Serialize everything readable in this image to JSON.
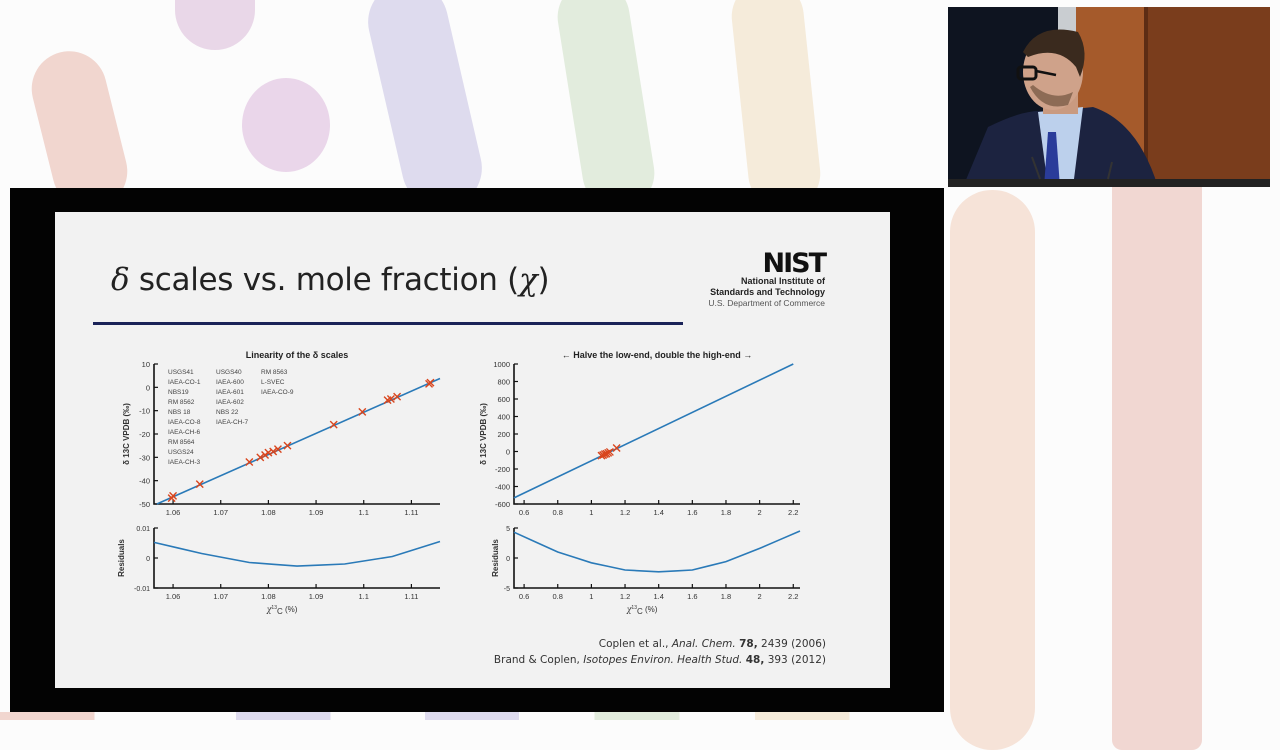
{
  "slide": {
    "title_prefix_symbol": "δ",
    "title_text": " scales vs. mole fraction (",
    "title_symbol": "χ",
    "title_suffix": ")",
    "logo": {
      "mark": "NIST",
      "line1": "National Institute of",
      "line2": "Standards and Technology",
      "line3": "U.S. Department of Commerce"
    },
    "citations": [
      {
        "authors": "Coplen et al., ",
        "journal": "Anal. Chem.",
        "volume": "78,",
        "rest": " 2439 (2006)"
      },
      {
        "authors": "Brand & Coplen, ",
        "journal": "Isotopes Environ. Health Stud.",
        "volume": "48,",
        "rest": " 393 (2012)"
      }
    ]
  },
  "video": {
    "description": "speaker-camera-feed"
  },
  "colors": {
    "line": "#2a7ab8",
    "marker": "#d9461e",
    "title_rule": "#1b2358",
    "slide_bg": "#f2f2f2",
    "frame": "#030303"
  },
  "chart_data": [
    {
      "type": "line",
      "title": "Linearity of the δ scales",
      "xlabel": "χ13C (%)",
      "ylabel": "δ 13C VPDB (‰)",
      "xlim": [
        1.056,
        1.116
      ],
      "ylim": [
        -50,
        10
      ],
      "xticks": [
        "1.06",
        "1.07",
        "1.08",
        "1.09",
        "1.1",
        "1.11"
      ],
      "yticks": [
        "10",
        "0",
        "-10",
        "-20",
        "-30",
        "-40",
        "-50"
      ],
      "series": [
        {
          "name": "fit",
          "x": [
            1.0566,
            1.116
          ],
          "y": [
            -50,
            3.8
          ]
        },
        {
          "name": "reference materials",
          "marker": "x",
          "x": [
            1.0597,
            1.06,
            1.0656,
            1.076,
            1.0783,
            1.0793,
            1.08,
            1.081,
            1.082,
            1.084,
            1.0937,
            1.0997,
            1.105,
            1.1057,
            1.107,
            1.1137,
            1.114
          ],
          "y": [
            -47.5,
            -46.5,
            -41.5,
            -32.0,
            -30.0,
            -29.0,
            -28.0,
            -27.5,
            -26.5,
            -25.0,
            -16.0,
            -10.5,
            -5.5,
            -5.0,
            -4.0,
            1.5,
            2.0
          ]
        }
      ],
      "legend": [
        "USGS41",
        "IAEA-CO-1",
        "NBS19",
        "RM 8562",
        "NBS 18",
        "IAEA-CO-8",
        "IAEA-CH-6",
        "RM 8564",
        "USGS24",
        "IAEA-CH-3",
        "USGS40",
        "IAEA-600",
        "IAEA-601",
        "IAEA-602",
        "NBS 22",
        "IAEA-CH-7",
        "RM 8563",
        "L-SVEC",
        "IAEA-CO-9"
      ],
      "legend_columns": [
        [
          "USGS41",
          "IAEA-CO-1",
          "NBS19",
          "RM 8562",
          "NBS 18",
          "IAEA-CO-8",
          "IAEA-CH-6",
          "RM 8564",
          "USGS24",
          "IAEA-CH-3"
        ],
        [
          "USGS40",
          "IAEA-600",
          "IAEA-601",
          "IAEA-602",
          "NBS 22",
          "IAEA-CH-7"
        ],
        [
          "RM 8563",
          "L-SVEC",
          "IAEA-CO-9"
        ]
      ],
      "legend_position": "upper left",
      "residuals": {
        "ylabel": "Residuals",
        "ylim": [
          -0.01,
          0.01
        ],
        "yticks": [
          "0.01",
          "0",
          "-0.01"
        ],
        "x": [
          1.056,
          1.066,
          1.076,
          1.086,
          1.096,
          1.106,
          1.116
        ],
        "y": [
          0.0052,
          0.0015,
          -0.0015,
          -0.0027,
          -0.002,
          0.0005,
          0.0055
        ]
      }
    },
    {
      "type": "line",
      "title": "← Halve the low-end, double the high-end →",
      "xlabel": "χ13C (%)",
      "ylabel": "δ 13C VPDB (‰)",
      "xlim": [
        0.54,
        2.24
      ],
      "ylim": [
        -600,
        1000
      ],
      "xticks": [
        "0.6",
        "0.8",
        "1",
        "1.2",
        "1.4",
        "1.6",
        "1.8",
        "2",
        "2.2"
      ],
      "yticks": [
        "1000",
        "800",
        "600",
        "400",
        "200",
        "0",
        "-200",
        "-400",
        "-600"
      ],
      "series": [
        {
          "name": "fit",
          "x": [
            0.54,
            2.2
          ],
          "y": [
            -530,
            1000
          ]
        },
        {
          "name": "reference materials",
          "marker": "x",
          "x": [
            1.06,
            1.07,
            1.08,
            1.09,
            1.1,
            1.11,
            1.15
          ],
          "y": [
            -47,
            -40,
            -30,
            -25,
            -15,
            -5,
            40
          ]
        }
      ],
      "residuals": {
        "ylabel": "Residuals",
        "ylim": [
          -5,
          5
        ],
        "yticks": [
          "5",
          "0",
          "-5"
        ],
        "x": [
          0.54,
          0.8,
          1.0,
          1.2,
          1.4,
          1.6,
          1.8,
          2.0,
          2.24
        ],
        "y": [
          4.3,
          1.0,
          -0.8,
          -2.0,
          -2.3,
          -2.0,
          -0.6,
          1.6,
          4.5
        ]
      }
    }
  ]
}
